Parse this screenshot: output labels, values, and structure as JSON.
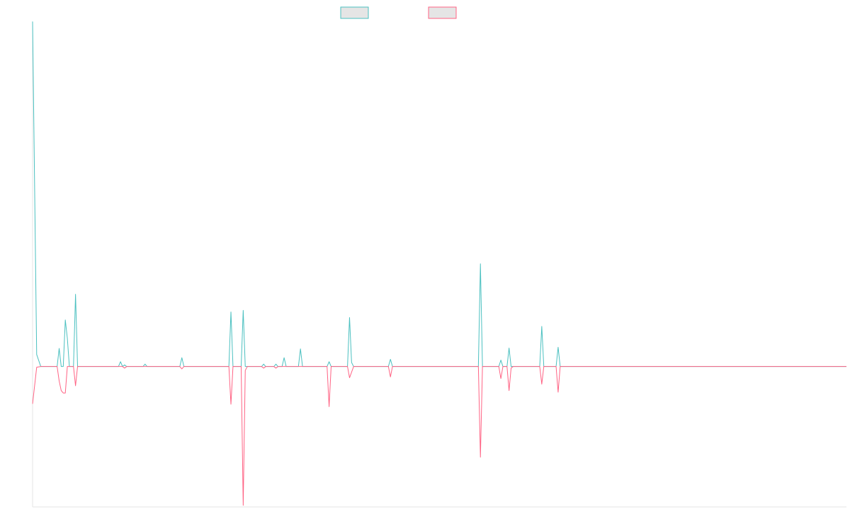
{
  "chart_data": {
    "type": "line",
    "title": "",
    "xlabel": "",
    "ylabel": "",
    "grid": false,
    "legend_position": "top-center",
    "x_count": 200,
    "ylim": [
      -0.35,
      0.85
    ],
    "series": [
      {
        "color": "#4bc0c0",
        "swatch_fill": "#e5e5e5",
        "points": [
          [
            0,
            0.86
          ],
          [
            1,
            0.03
          ],
          [
            2,
            0.0
          ],
          [
            6,
            0.0
          ],
          [
            6.5,
            0.045
          ],
          [
            7,
            0.0
          ],
          [
            7.5,
            0.0
          ],
          [
            8,
            0.116
          ],
          [
            8.5,
            0.07
          ],
          [
            9,
            0.0
          ],
          [
            10,
            0.0
          ],
          [
            10.5,
            0.18
          ],
          [
            11,
            0.0
          ],
          [
            21,
            0.0
          ],
          [
            21.5,
            0.012
          ],
          [
            22,
            0.0
          ],
          [
            22.5,
            0.004
          ],
          [
            23,
            0.0
          ],
          [
            27,
            0.0
          ],
          [
            27.5,
            0.006
          ],
          [
            28,
            0.0
          ],
          [
            36,
            0.0
          ],
          [
            36.5,
            0.022
          ],
          [
            37,
            0.0
          ],
          [
            48,
            0.0
          ],
          [
            48.5,
            0.136
          ],
          [
            49,
            0.0
          ],
          [
            51,
            0.0
          ],
          [
            51.5,
            0.14
          ],
          [
            52,
            0.0
          ],
          [
            56,
            0.0
          ],
          [
            56.5,
            0.006
          ],
          [
            57,
            0.0
          ],
          [
            59,
            0.0
          ],
          [
            59.5,
            0.006
          ],
          [
            60,
            0.0
          ],
          [
            61,
            0.0
          ],
          [
            61.5,
            0.022
          ],
          [
            62,
            0.0
          ],
          [
            65,
            0.0
          ],
          [
            65.5,
            0.044
          ],
          [
            66,
            0.0
          ],
          [
            72,
            0.0
          ],
          [
            72.5,
            0.012
          ],
          [
            73,
            0.0
          ],
          [
            77,
            0.0
          ],
          [
            77.5,
            0.122
          ],
          [
            78,
            0.01
          ],
          [
            78.5,
            0.0
          ],
          [
            87,
            0.0
          ],
          [
            87.5,
            0.018
          ],
          [
            88,
            0.0
          ],
          [
            109,
            0.0
          ],
          [
            109.5,
            0.256
          ],
          [
            110,
            0.0
          ],
          [
            114,
            0.0
          ],
          [
            114.5,
            0.016
          ],
          [
            115,
            0.0
          ],
          [
            116,
            0.0
          ],
          [
            116.5,
            0.046
          ],
          [
            117,
            0.0
          ],
          [
            124,
            0.0
          ],
          [
            124.5,
            0.1
          ],
          [
            125,
            0.0
          ],
          [
            128,
            0.0
          ],
          [
            128.5,
            0.048
          ],
          [
            129,
            0.0
          ],
          [
            199,
            0.0
          ]
        ]
      },
      {
        "color": "#ff6384",
        "swatch_fill": "#e5e5e5",
        "points": [
          [
            0,
            -0.093
          ],
          [
            1,
            -0.002
          ],
          [
            2,
            0.0
          ],
          [
            6,
            0.0
          ],
          [
            6.5,
            -0.036
          ],
          [
            7,
            -0.06
          ],
          [
            7.5,
            -0.066
          ],
          [
            8,
            -0.066
          ],
          [
            8.5,
            0.0
          ],
          [
            10,
            0.0
          ],
          [
            10.5,
            -0.048
          ],
          [
            11,
            0.0
          ],
          [
            22,
            0.0
          ],
          [
            22.5,
            -0.004
          ],
          [
            23,
            0.0
          ],
          [
            36,
            0.0
          ],
          [
            36.5,
            -0.006
          ],
          [
            37,
            0.0
          ],
          [
            48,
            0.0
          ],
          [
            48.5,
            -0.094
          ],
          [
            49,
            0.0
          ],
          [
            51,
            0.0
          ],
          [
            51.5,
            -0.346
          ],
          [
            52,
            -0.01
          ],
          [
            52.5,
            0.0
          ],
          [
            56,
            0.0
          ],
          [
            56.5,
            -0.004
          ],
          [
            57,
            0.0
          ],
          [
            59,
            0.0
          ],
          [
            59.5,
            -0.004
          ],
          [
            60,
            0.0
          ],
          [
            72,
            0.0
          ],
          [
            72.5,
            -0.1
          ],
          [
            73,
            0.0
          ],
          [
            77,
            0.0
          ],
          [
            77.5,
            -0.028
          ],
          [
            78.5,
            0.0
          ],
          [
            87,
            0.0
          ],
          [
            87.5,
            -0.026
          ],
          [
            88,
            0.0
          ],
          [
            109,
            0.0
          ],
          [
            109.5,
            -0.226
          ],
          [
            110,
            0.0
          ],
          [
            114,
            0.0
          ],
          [
            114.5,
            -0.03
          ],
          [
            115,
            0.0
          ],
          [
            116,
            0.0
          ],
          [
            116.5,
            -0.06
          ],
          [
            117,
            -0.004
          ],
          [
            117.5,
            0.0
          ],
          [
            124,
            0.0
          ],
          [
            124.5,
            -0.044
          ],
          [
            125,
            0.0
          ],
          [
            128,
            0.0
          ],
          [
            128.5,
            -0.064
          ],
          [
            129,
            0.0
          ],
          [
            199,
            0.0
          ]
        ]
      }
    ]
  }
}
